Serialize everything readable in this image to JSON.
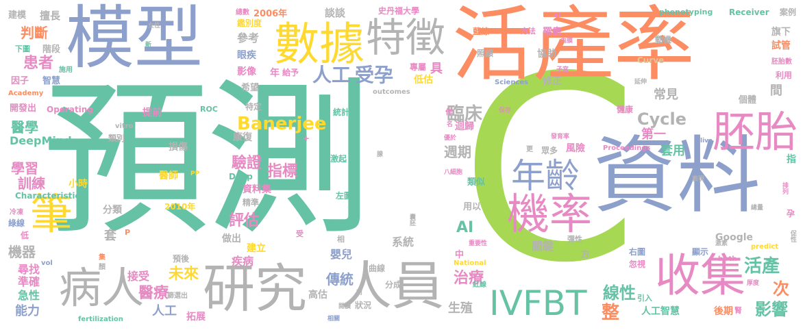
{
  "palette": {
    "green": "#66c2a5",
    "orange": "#fc8d62",
    "blue": "#8da0cb",
    "pink": "#e78ac3",
    "lime": "#a6d854",
    "yellow": "#ffd92f",
    "tan": "#e5c494",
    "gray": "#b3b3b3"
  },
  "words": [
    {
      "text": "預測",
      "color": "green"
    },
    {
      "text": "C",
      "color": "lime"
    },
    {
      "text": "活產率",
      "color": "orange"
    },
    {
      "text": "模型",
      "color": "blue"
    },
    {
      "text": "資料",
      "color": "blue"
    },
    {
      "text": "研究",
      "color": "gray"
    },
    {
      "text": "人員",
      "color": "gray"
    },
    {
      "text": "病人",
      "color": "gray"
    },
    {
      "text": "數據",
      "color": "yellow"
    },
    {
      "text": "特徵",
      "color": "gray"
    },
    {
      "text": "收集",
      "color": "pink"
    },
    {
      "text": "IVFBT",
      "color": "green"
    },
    {
      "text": "機率",
      "color": "pink"
    },
    {
      "text": "年齡",
      "color": "blue"
    },
    {
      "text": "胚胎",
      "color": "pink"
    },
    {
      "text": "筆",
      "color": "yellow"
    },
    {
      "text": "人工",
      "color": "blue"
    },
    {
      "text": "受孕",
      "color": "blue"
    },
    {
      "text": "Banerjee",
      "color": "yellow"
    },
    {
      "text": "Cycle",
      "color": "gray"
    },
    {
      "text": "臨床",
      "color": "gray"
    },
    {
      "text": "活產",
      "color": "green"
    },
    {
      "text": "線性",
      "color": "green"
    },
    {
      "text": "整",
      "color": "orange"
    },
    {
      "text": "影響",
      "color": "green"
    },
    {
      "text": "次",
      "color": "orange"
    },
    {
      "text": "醫療",
      "color": "pink"
    },
    {
      "text": "未來",
      "color": "yellow"
    },
    {
      "text": "評估",
      "color": "pink"
    },
    {
      "text": "驗證",
      "color": "pink"
    },
    {
      "text": "指標",
      "color": "pink"
    },
    {
      "text": "患者",
      "color": "pink"
    },
    {
      "text": "判斷",
      "color": "orange"
    },
    {
      "text": "醫學",
      "color": "green"
    },
    {
      "text": "學習",
      "color": "pink"
    },
    {
      "text": "訓練",
      "color": "pink"
    },
    {
      "text": "DeepMind",
      "color": "green"
    },
    {
      "text": "機器",
      "color": "gray"
    },
    {
      "text": "能力",
      "color": "blue"
    },
    {
      "text": "急性",
      "color": "green"
    },
    {
      "text": "準確",
      "color": "pink"
    },
    {
      "text": "尋找",
      "color": "pink"
    },
    {
      "text": "AI",
      "color": "green"
    },
    {
      "text": "治療",
      "color": "pink"
    },
    {
      "text": "傳統",
      "color": "blue"
    },
    {
      "text": "週期",
      "color": "gray"
    },
    {
      "text": "第一",
      "color": "pink"
    },
    {
      "text": "套用",
      "color": "green"
    },
    {
      "text": "常見",
      "color": "gray"
    },
    {
      "text": "間",
      "color": "gray"
    },
    {
      "text": "人工智慧",
      "color": "green"
    },
    {
      "text": "後期",
      "color": "orange"
    },
    {
      "text": "Google",
      "color": "gray"
    },
    {
      "text": "關鍵",
      "color": "gray"
    },
    {
      "text": "生殖",
      "color": "gray"
    },
    {
      "text": "高估",
      "color": "gray"
    },
    {
      "text": "嬰兒",
      "color": "blue"
    },
    {
      "text": "疾病",
      "color": "pink"
    },
    {
      "text": "建立",
      "color": "yellow"
    },
    {
      "text": "做出",
      "color": "gray"
    },
    {
      "text": "接受",
      "color": "pink"
    },
    {
      "text": "拓展",
      "color": "pink"
    },
    {
      "text": "系統",
      "color": "gray"
    },
    {
      "text": "分成",
      "color": "gray"
    },
    {
      "text": "狀況",
      "color": "gray"
    },
    {
      "text": "曲線",
      "color": "gray"
    },
    {
      "text": "資料集",
      "color": "pink"
    },
    {
      "text": "精準",
      "color": "gray"
    },
    {
      "text": "2010年",
      "color": "yellow"
    },
    {
      "text": "醫師",
      "color": "yellow"
    },
    {
      "text": "損傷",
      "color": "gray"
    },
    {
      "text": "康復",
      "color": "gray"
    },
    {
      "text": "特定",
      "color": "gray"
    },
    {
      "text": "提前",
      "color": "pink"
    },
    {
      "text": "類別",
      "color": "gray"
    },
    {
      "text": "分類",
      "color": "gray"
    },
    {
      "text": "套",
      "color": "gray"
    },
    {
      "text": "Deep",
      "color": "green"
    },
    {
      "text": "小時",
      "color": "yellow"
    },
    {
      "text": "Characteristic",
      "color": "green"
    },
    {
      "text": "Operating",
      "color": "pink"
    },
    {
      "text": "開發出",
      "color": "pink"
    },
    {
      "text": "因子",
      "color": "pink"
    },
    {
      "text": "智慧",
      "color": "blue"
    },
    {
      "text": "階段",
      "color": "gray"
    },
    {
      "text": "下圖",
      "color": "green"
    },
    {
      "text": "建模",
      "color": "gray"
    },
    {
      "text": "擅長",
      "color": "gray"
    },
    {
      "text": "總數",
      "color": "pink"
    },
    {
      "text": "鑑別度",
      "color": "yellow"
    },
    {
      "text": "參考",
      "color": "gray"
    },
    {
      "text": "眼疾",
      "color": "blue"
    },
    {
      "text": "影像",
      "color": "pink"
    },
    {
      "text": "年",
      "color": "pink"
    },
    {
      "text": "給予",
      "color": "pink"
    },
    {
      "text": "希望",
      "color": "gray"
    },
    {
      "text": "2006年",
      "color": "orange"
    },
    {
      "text": "談談",
      "color": "gray"
    },
    {
      "text": "史丹福大學",
      "color": "pink"
    },
    {
      "text": "專屬",
      "color": "pink"
    },
    {
      "text": "具",
      "color": "pink"
    },
    {
      "text": "低估",
      "color": "yellow"
    },
    {
      "text": "統計",
      "color": "green"
    },
    {
      "text": "激起",
      "color": "green"
    },
    {
      "text": "左圖",
      "color": "green"
    },
    {
      "text": "迴歸",
      "color": "pink"
    },
    {
      "text": "類似",
      "color": "green"
    },
    {
      "text": "用以",
      "color": "gray"
    },
    {
      "text": "方",
      "color": "gray"
    },
    {
      "text": "風險",
      "color": "pink"
    },
    {
      "text": "眾多",
      "color": "gray"
    },
    {
      "text": "彈性",
      "color": "gray"
    },
    {
      "text": "忽視",
      "color": "pink"
    },
    {
      "text": "顯示",
      "color": "blue"
    },
    {
      "text": "右圖",
      "color": "blue"
    },
    {
      "text": "引入",
      "color": "green"
    },
    {
      "text": "個體",
      "color": "gray"
    },
    {
      "text": "健康",
      "color": "pink"
    },
    {
      "text": "修正",
      "color": "gray"
    },
    {
      "text": "協助",
      "color": "gray"
    },
    {
      "text": "照顧",
      "color": "gray"
    },
    {
      "text": "罹患",
      "color": "pink"
    },
    {
      "text": "藍線",
      "color": "orange"
    },
    {
      "text": "方法",
      "color": "pink"
    },
    {
      "text": "動機",
      "color": "gray"
    },
    {
      "text": "旗下",
      "color": "gray"
    },
    {
      "text": "試管",
      "color": "orange"
    },
    {
      "text": "利用",
      "color": "pink"
    },
    {
      "text": "案例",
      "color": "gray"
    },
    {
      "text": "Receiver",
      "color": "green"
    },
    {
      "text": "phenotyping",
      "color": "green"
    },
    {
      "text": "Curve",
      "color": "tan"
    },
    {
      "text": "Sciences",
      "color": "blue"
    },
    {
      "text": "outcomes",
      "color": "gray"
    },
    {
      "text": "Proceedings",
      "color": "pink"
    },
    {
      "text": "ROC",
      "color": "green"
    },
    {
      "text": "Academy",
      "color": "orange"
    },
    {
      "text": "fertilization",
      "color": "green"
    },
    {
      "text": "National",
      "color": "yellow"
    },
    {
      "text": "vitro",
      "color": "gray"
    },
    {
      "text": "predict",
      "color": "yellow"
    },
    {
      "text": "birth",
      "color": "pink"
    },
    {
      "text": "live",
      "color": "blue"
    },
    {
      "text": "al",
      "color": "pink"
    },
    {
      "text": "PP",
      "color": "yellow"
    },
    {
      "text": "vol",
      "color": "blue"
    },
    {
      "text": "P",
      "color": "orange"
    },
    {
      "text": "+",
      "color": "pink"
    },
    {
      "text": "指",
      "color": "green"
    },
    {
      "text": "孕",
      "color": "pink"
    },
    {
      "text": "排列",
      "color": "pink"
    },
    {
      "text": "表現",
      "color": "gray"
    },
    {
      "text": "總量",
      "color": "gray"
    },
    {
      "text": "激素",
      "color": "gray"
    },
    {
      "text": "促性",
      "color": "gray"
    },
    {
      "text": "厚度",
      "color": "pink"
    },
    {
      "text": "腎",
      "color": "pink"
    },
    {
      "text": "紅線",
      "color": "green"
    },
    {
      "text": "中",
      "color": "pink"
    },
    {
      "text": "重要性",
      "color": "pink"
    },
    {
      "text": "相",
      "color": "gray"
    },
    {
      "text": "受",
      "color": "pink"
    },
    {
      "text": "囊胚",
      "color": "gray"
    },
    {
      "text": "腺",
      "color": "gray"
    },
    {
      "text": "八細胞",
      "color": "pink"
    },
    {
      "text": "優於",
      "color": "pink"
    },
    {
      "text": "名",
      "color": "pink"
    },
    {
      "text": "作",
      "color": "pink"
    },
    {
      "text": "保存",
      "color": "pink"
    },
    {
      "text": "更",
      "color": "gray"
    },
    {
      "text": "發育率",
      "color": "pink"
    },
    {
      "text": "延伸",
      "color": "gray"
    },
    {
      "text": "內膜",
      "color": "pink"
    },
    {
      "text": "子宮",
      "color": "pink"
    },
    {
      "text": "胚胎數",
      "color": "pink"
    },
    {
      "text": "新",
      "color": "green"
    },
    {
      "text": "女性",
      "color": "gray"
    },
    {
      "text": "施用",
      "color": "green"
    },
    {
      "text": "冷凍",
      "color": "pink"
    },
    {
      "text": "綠線",
      "color": "blue"
    },
    {
      "text": "低",
      "color": "pink"
    },
    {
      "text": "集",
      "color": "orange"
    },
    {
      "text": "顏",
      "color": "gray"
    },
    {
      "text": "預後",
      "color": "gray"
    },
    {
      "text": "篩選出",
      "color": "gray"
    },
    {
      "text": "前",
      "color": "gray"
    },
    {
      "text": "閱讀",
      "color": "gray"
    },
    {
      "text": "相關",
      "color": "blue"
    }
  ]
}
